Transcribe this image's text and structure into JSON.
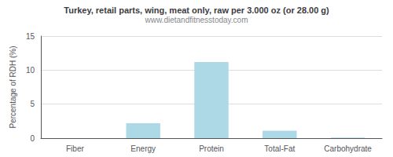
{
  "chart_data": {
    "type": "bar",
    "title": "Turkey, retail parts, wing, meat only, raw per 3.000 oz (or 28.00 g)",
    "subtitle": "www.dietandfitnesstoday.com",
    "categories": [
      "Fiber",
      "Energy",
      "Protein",
      "Total-Fat",
      "Carbohydrate"
    ],
    "values": [
      0,
      2.2,
      11.2,
      1.1,
      0.1
    ],
    "color": "#add8e6",
    "ylabel": "Percentage of RDH (%)",
    "ylim": [
      0,
      15
    ],
    "yticks": [
      0,
      5,
      10,
      15
    ],
    "grid": true
  }
}
